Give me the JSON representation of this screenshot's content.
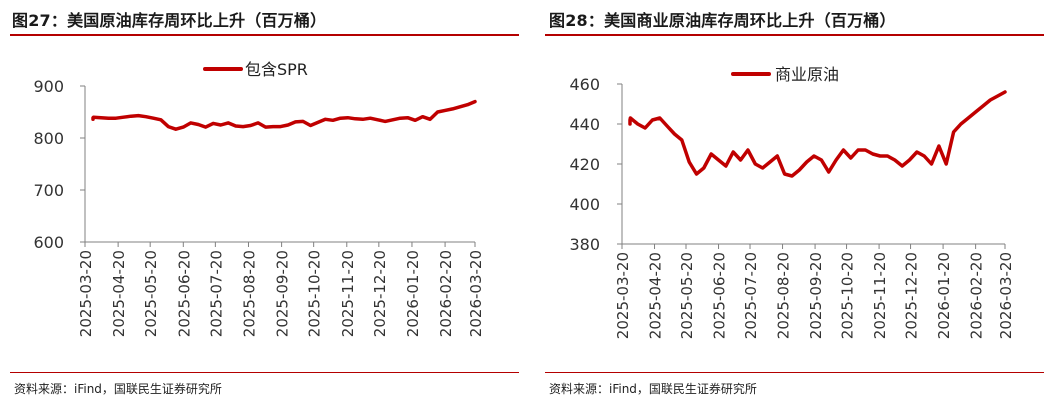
{
  "colors": {
    "series": "#c00000",
    "title_rule": "#b40000",
    "axis": "#808080"
  },
  "panels": [
    {
      "title": "图27：美国原油库存周环比上升（百万桶）",
      "source": "资料来源：iFind，国联民生证券研究所"
    },
    {
      "title": "图28：美国商业原油库存周环比上升（百万桶）",
      "source": "资料来源：iFind，国联民生证券研究所"
    }
  ],
  "chart_data": [
    {
      "type": "line",
      "title": "",
      "xlabel": "",
      "ylabel": "",
      "ylim": [
        600,
        900
      ],
      "yticks": [
        600,
        700,
        800,
        900
      ],
      "xticks": [
        "2025-03-20",
        "2025-04-20",
        "2025-05-20",
        "2025-06-20",
        "2025-07-20",
        "2025-08-20",
        "2025-09-20",
        "2025-10-20",
        "2025-11-20",
        "2025-12-20",
        "2026-01-20",
        "2026-02-20",
        "2026-03-20"
      ],
      "grid": false,
      "legend": "top-center",
      "series": [
        {
          "name": "包含SPR",
          "x": [
            "2025-03-14",
            "2025-03-21",
            "2025-03-28",
            "2025-04-04",
            "2025-04-11",
            "2025-04-18",
            "2025-04-25",
            "2025-05-02",
            "2025-05-09",
            "2025-05-16",
            "2025-05-23",
            "2025-05-30",
            "2025-06-06",
            "2025-06-13",
            "2025-06-20",
            "2025-06-27",
            "2025-07-04",
            "2025-07-11",
            "2025-07-18",
            "2025-07-25",
            "2025-08-01",
            "2025-08-08",
            "2025-08-15",
            "2025-08-22",
            "2025-08-29",
            "2025-09-05",
            "2025-09-12",
            "2025-09-19",
            "2025-09-26",
            "2025-10-03",
            "2025-10-10",
            "2025-10-17",
            "2025-10-24",
            "2025-10-31",
            "2025-11-07",
            "2025-11-14",
            "2025-11-21",
            "2025-11-28",
            "2025-12-05",
            "2025-12-12",
            "2025-12-19",
            "2025-12-26",
            "2026-01-02",
            "2026-01-09",
            "2026-01-16",
            "2026-01-23",
            "2026-01-30",
            "2026-02-06",
            "2026-02-13",
            "2026-02-20",
            "2026-02-27",
            "2026-03-06",
            "2026-03-13",
            "2026-03-20"
          ],
          "values": [
            836,
            839,
            840,
            839,
            838,
            838,
            840,
            842,
            843,
            841,
            838,
            835,
            822,
            817,
            821,
            829,
            826,
            821,
            828,
            825,
            829,
            823,
            822,
            824,
            829,
            821,
            822,
            822,
            825,
            831,
            832,
            824,
            830,
            836,
            834,
            838,
            839,
            837,
            836,
            838,
            835,
            832,
            835,
            838,
            839,
            834,
            841,
            836,
            850,
            853,
            856,
            860,
            864,
            870
          ]
        }
      ]
    },
    {
      "type": "line",
      "title": "",
      "xlabel": "",
      "ylabel": "",
      "ylim": [
        380,
        460
      ],
      "yticks": [
        380,
        400,
        420,
        440,
        460
      ],
      "xticks": [
        "2025-03-20",
        "2025-04-20",
        "2025-05-20",
        "2025-06-20",
        "2025-07-20",
        "2025-08-20",
        "2025-09-20",
        "2025-10-20",
        "2025-11-20",
        "2025-12-20",
        "2026-01-20",
        "2026-02-20",
        "2026-03-20"
      ],
      "grid": false,
      "legend": "top-center",
      "series": [
        {
          "name": "商业原油",
          "x": [
            "2025-03-14",
            "2025-03-21",
            "2025-03-28",
            "2025-04-04",
            "2025-04-11",
            "2025-04-18",
            "2025-04-25",
            "2025-05-02",
            "2025-05-09",
            "2025-05-16",
            "2025-05-23",
            "2025-05-30",
            "2025-06-06",
            "2025-06-13",
            "2025-06-20",
            "2025-06-27",
            "2025-07-04",
            "2025-07-11",
            "2025-07-18",
            "2025-07-25",
            "2025-08-01",
            "2025-08-08",
            "2025-08-15",
            "2025-08-22",
            "2025-08-29",
            "2025-09-05",
            "2025-09-12",
            "2025-09-19",
            "2025-09-26",
            "2025-10-03",
            "2025-10-10",
            "2025-10-17",
            "2025-10-24",
            "2025-10-31",
            "2025-11-07",
            "2025-11-14",
            "2025-11-21",
            "2025-11-28",
            "2025-12-05",
            "2025-12-12",
            "2025-12-19",
            "2025-12-26",
            "2026-01-02",
            "2026-01-09",
            "2026-01-16",
            "2026-01-23",
            "2026-01-30",
            "2026-02-06",
            "2026-02-13",
            "2026-02-20",
            "2026-02-27",
            "2026-03-06",
            "2026-03-13",
            "2026-03-20"
          ],
          "values": [
            440,
            442,
            443,
            440,
            438,
            442,
            443,
            439,
            435,
            432,
            421,
            415,
            418,
            425,
            422,
            419,
            426,
            422,
            427,
            420,
            418,
            421,
            424,
            415,
            414,
            417,
            421,
            424,
            422,
            416,
            422,
            427,
            423,
            427,
            427,
            425,
            424,
            424,
            422,
            419,
            422,
            426,
            424,
            420,
            429,
            420,
            436,
            440,
            443,
            446,
            449,
            452,
            454,
            456
          ]
        }
      ]
    }
  ]
}
